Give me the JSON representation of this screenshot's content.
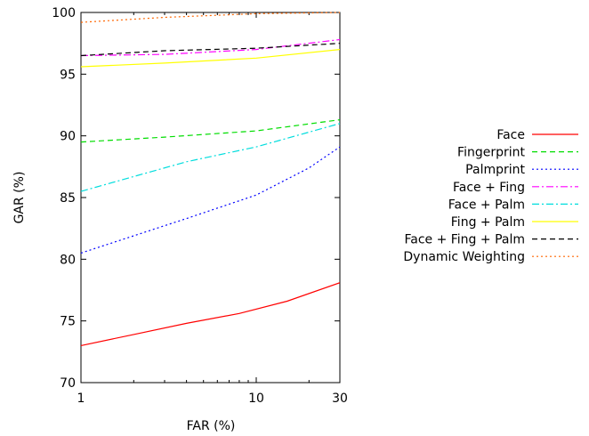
{
  "chart_data": {
    "type": "line",
    "xlabel": "FAR (%)",
    "ylabel": "GAR (%)",
    "x_scale": "log",
    "xlim": [
      1,
      30
    ],
    "ylim": [
      70,
      100
    ],
    "x_ticks": [
      1,
      10,
      30
    ],
    "y_ticks": [
      70,
      75,
      80,
      85,
      90,
      95,
      100
    ],
    "grid": false,
    "legend_placement": "right",
    "series": [
      {
        "name": "Face",
        "color": "#ff0000",
        "dash": "solid",
        "points": [
          [
            1,
            73.0
          ],
          [
            2,
            73.9
          ],
          [
            4,
            74.8
          ],
          [
            8,
            75.6
          ],
          [
            15,
            76.6
          ],
          [
            30,
            78.1
          ]
        ]
      },
      {
        "name": "Fingerprint",
        "color": "#00dd00",
        "dash": "dashed",
        "points": [
          [
            1,
            89.5
          ],
          [
            3,
            89.9
          ],
          [
            10,
            90.4
          ],
          [
            30,
            91.3
          ]
        ]
      },
      {
        "name": "Palmprint",
        "color": "#0000ff",
        "dash": "dotted",
        "points": [
          [
            1,
            80.5
          ],
          [
            2,
            81.9
          ],
          [
            4,
            83.3
          ],
          [
            10,
            85.2
          ],
          [
            20,
            87.4
          ],
          [
            30,
            89.1
          ]
        ]
      },
      {
        "name": "Face + Fing",
        "color": "#ff00ff",
        "dash": "dashdot",
        "points": [
          [
            1,
            96.5
          ],
          [
            3,
            96.6
          ],
          [
            10,
            97.0
          ],
          [
            30,
            97.8
          ]
        ]
      },
      {
        "name": "Face + Palm",
        "color": "#00dddd",
        "dash": "dashdot",
        "points": [
          [
            1,
            85.5
          ],
          [
            2,
            86.7
          ],
          [
            4,
            87.9
          ],
          [
            10,
            89.1
          ],
          [
            20,
            90.3
          ],
          [
            30,
            91.0
          ]
        ]
      },
      {
        "name": "Fing + Palm",
        "color": "#ffff00",
        "dash": "solid",
        "points": [
          [
            1,
            95.6
          ],
          [
            3,
            95.9
          ],
          [
            10,
            96.3
          ],
          [
            30,
            97.0
          ]
        ]
      },
      {
        "name": "Face + Fing + Palm",
        "color": "#000000",
        "dash": "dashed",
        "points": [
          [
            1,
            96.5
          ],
          [
            3,
            96.9
          ],
          [
            10,
            97.1
          ],
          [
            30,
            97.5
          ]
        ]
      },
      {
        "name": "Dynamic Weighting",
        "color": "#ff6600",
        "dash": "dotted",
        "points": [
          [
            1,
            99.2
          ],
          [
            3,
            99.6
          ],
          [
            10,
            99.9
          ],
          [
            30,
            100.0
          ]
        ]
      }
    ]
  }
}
